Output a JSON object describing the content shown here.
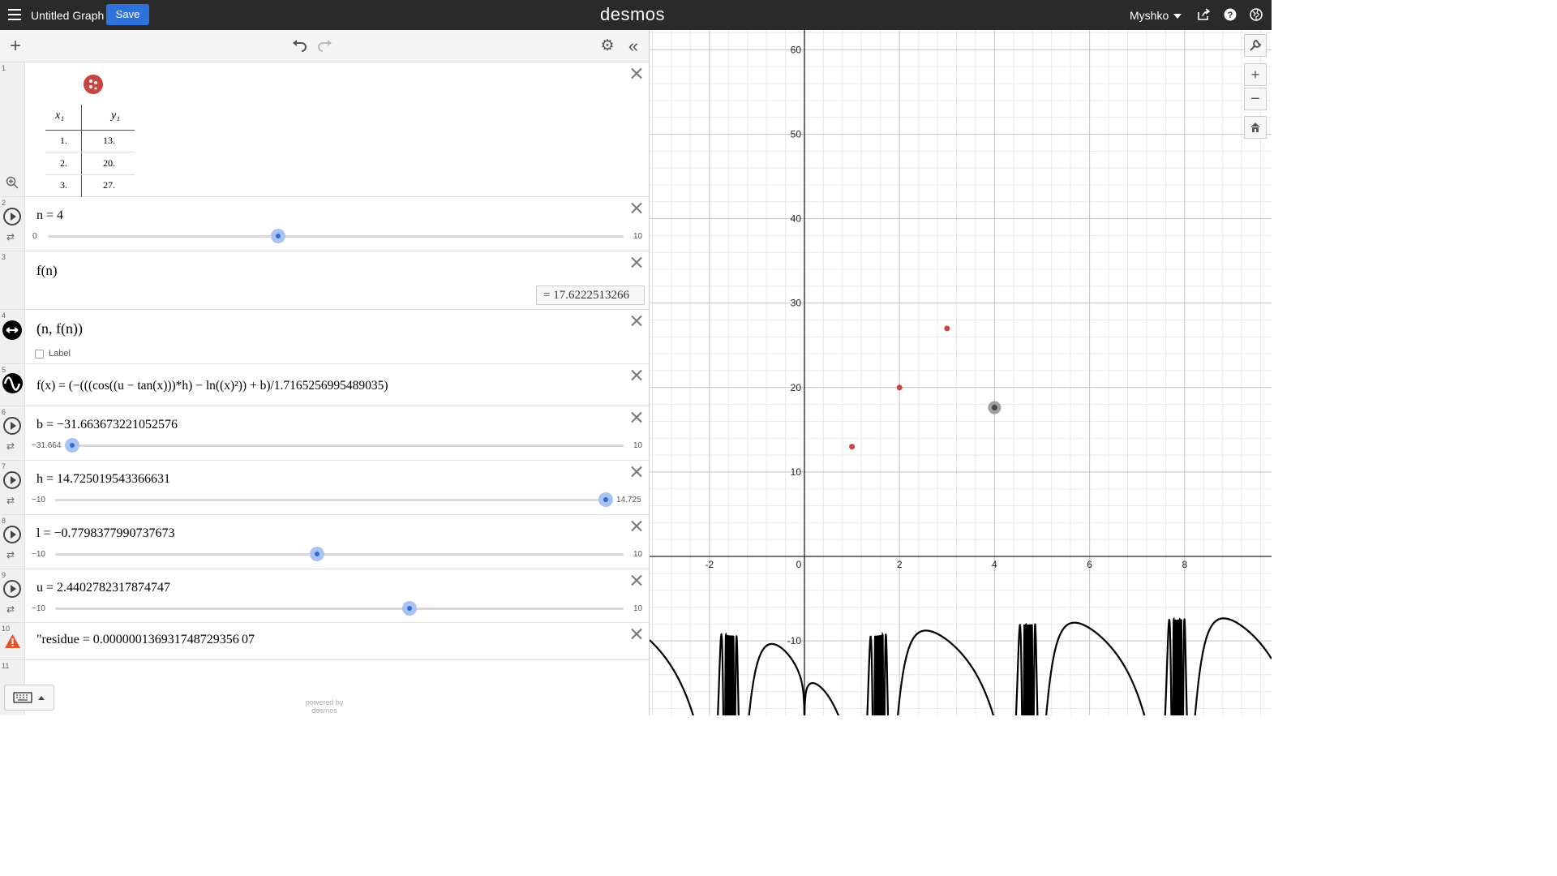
{
  "header": {
    "title": "Untitled Graph",
    "save_label": "Save",
    "logo": "desmos",
    "user": "Myshko",
    "icons": [
      "share-icon",
      "help-icon",
      "language-icon"
    ]
  },
  "toolbar": {
    "add": "+",
    "undo": "↶",
    "redo": "↷",
    "settings": "⚙",
    "collapse": "«"
  },
  "expressions": {
    "table": {
      "num": "1",
      "col1": "x₁",
      "col2": "y₁",
      "rows": [
        [
          "1.",
          "13."
        ],
        [
          "2.",
          "20."
        ],
        [
          "3.",
          "27."
        ]
      ],
      "color": "#c74440"
    },
    "n": {
      "num": "2",
      "latex": "n = 4",
      "min": "0",
      "max": "10",
      "value": 4
    },
    "fn": {
      "num": "3",
      "latex": "f(n)",
      "result": "= 17.6222513266"
    },
    "point": {
      "num": "4",
      "latex": "(n, f(n))",
      "label_option": "Label"
    },
    "f": {
      "num": "5",
      "latex": "f(x) = (−(((cos((u − tan(x)))*h) − ln((x)²)) + b)/1.7165256995489035)"
    },
    "b": {
      "num": "6",
      "latex": "b = −31.663673221052576",
      "min": "−31.664",
      "max": "10",
      "value": -31.664
    },
    "h": {
      "num": "7",
      "latex": "h = 14.725019543366631",
      "min": "−10",
      "max": "14.725",
      "value": 14.725
    },
    "l": {
      "num": "8",
      "latex": "l = −0.7798377990737673",
      "min": "−10",
      "max": "10",
      "value": -0.78
    },
    "u": {
      "num": "9",
      "latex": "u = 2.4402782317874747",
      "min": "−10",
      "max": "10",
      "value": 2.44
    },
    "residue": {
      "num": "10",
      "latex": "\"residue = 0.000000136931748729356 07"
    },
    "empty": {
      "num": "11"
    }
  },
  "powered": "powered by desmos",
  "graph": {
    "xticks": [
      "-2",
      "0",
      "2",
      "4",
      "6",
      "8"
    ],
    "yticks": [
      "60",
      "50",
      "40",
      "30",
      "20",
      "10",
      "-10"
    ],
    "colors": {
      "curve": "#000000",
      "points": "#c74440",
      "movable": "#888888"
    }
  }
}
